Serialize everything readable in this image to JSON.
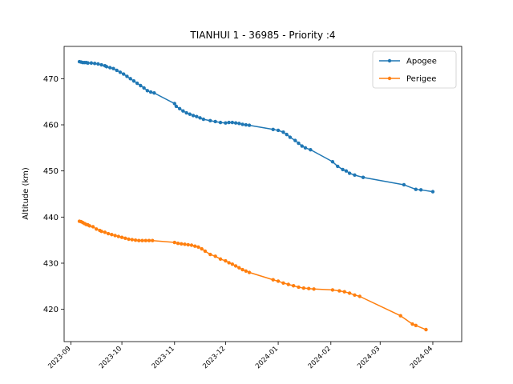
{
  "chart_data": {
    "type": "line",
    "title": "TIANHUI 1 - 36985 - Priority :4",
    "xlabel": "",
    "ylabel": "Altitude (km)",
    "x_axis_type": "date",
    "xlim": [
      "2023-08-28",
      "2024-04-18"
    ],
    "ylim": [
      413,
      477
    ],
    "xticks": [
      "2023-09-01",
      "2023-10-01",
      "2023-11-01",
      "2023-12-01",
      "2024-01-01",
      "2024-02-01",
      "2024-03-01",
      "2024-04-01"
    ],
    "xtick_labels": [
      "2023-09",
      "2023-10",
      "2023-11",
      "2023-12",
      "2024-01",
      "2024-02",
      "2024-03",
      "2024-04"
    ],
    "yticks": [
      420,
      430,
      440,
      450,
      460,
      470
    ],
    "ytick_labels": [
      "420",
      "430",
      "440",
      "450",
      "460",
      "470"
    ],
    "grid": false,
    "legend_position": "top-right",
    "series": [
      {
        "name": "Apogee",
        "color": "#1f77b4",
        "marker": "circle",
        "points": [
          [
            "2023-09-06",
            473.7
          ],
          [
            "2023-09-07",
            473.6
          ],
          [
            "2023-09-08",
            473.5
          ],
          [
            "2023-09-09",
            473.5
          ],
          [
            "2023-09-10",
            473.5
          ],
          [
            "2023-09-11",
            473.4
          ],
          [
            "2023-09-13",
            473.4
          ],
          [
            "2023-09-15",
            473.3
          ],
          [
            "2023-09-17",
            473.2
          ],
          [
            "2023-09-19",
            473.0
          ],
          [
            "2023-09-21",
            472.8
          ],
          [
            "2023-09-22",
            472.6
          ],
          [
            "2023-09-24",
            472.4
          ],
          [
            "2023-09-26",
            472.2
          ],
          [
            "2023-09-28",
            471.8
          ],
          [
            "2023-09-30",
            471.4
          ],
          [
            "2023-10-02",
            471.0
          ],
          [
            "2023-10-04",
            470.5
          ],
          [
            "2023-10-06",
            470.0
          ],
          [
            "2023-10-08",
            469.5
          ],
          [
            "2023-10-10",
            469.0
          ],
          [
            "2023-10-12",
            468.5
          ],
          [
            "2023-10-14",
            468.0
          ],
          [
            "2023-10-16",
            467.4
          ],
          [
            "2023-10-18",
            467.1
          ],
          [
            "2023-10-20",
            466.9
          ],
          [
            "2023-11-01",
            464.6
          ],
          [
            "2023-11-02",
            464.0
          ],
          [
            "2023-11-04",
            463.5
          ],
          [
            "2023-11-06",
            463.0
          ],
          [
            "2023-11-08",
            462.6
          ],
          [
            "2023-11-10",
            462.3
          ],
          [
            "2023-11-12",
            462.0
          ],
          [
            "2023-11-14",
            461.8
          ],
          [
            "2023-11-16",
            461.5
          ],
          [
            "2023-11-18",
            461.2
          ],
          [
            "2023-11-22",
            460.9
          ],
          [
            "2023-11-25",
            460.7
          ],
          [
            "2023-11-28",
            460.5
          ],
          [
            "2023-12-01",
            460.4
          ],
          [
            "2023-12-03",
            460.5
          ],
          [
            "2023-12-05",
            460.5
          ],
          [
            "2023-12-07",
            460.4
          ],
          [
            "2023-12-09",
            460.3
          ],
          [
            "2023-12-11",
            460.1
          ],
          [
            "2023-12-13",
            460.0
          ],
          [
            "2023-12-15",
            459.9
          ],
          [
            "2023-12-29",
            459.0
          ],
          [
            "2024-01-01",
            458.8
          ],
          [
            "2024-01-04",
            458.4
          ],
          [
            "2024-01-06",
            457.9
          ],
          [
            "2024-01-08",
            457.3
          ],
          [
            "2024-01-11",
            456.6
          ],
          [
            "2024-01-13",
            456.0
          ],
          [
            "2024-01-15",
            455.4
          ],
          [
            "2024-01-17",
            455.0
          ],
          [
            "2024-01-20",
            454.6
          ],
          [
            "2024-02-02",
            452.0
          ],
          [
            "2024-02-05",
            451.0
          ],
          [
            "2024-02-08",
            450.3
          ],
          [
            "2024-02-10",
            450.0
          ],
          [
            "2024-02-12",
            449.5
          ],
          [
            "2024-02-15",
            449.1
          ],
          [
            "2024-02-20",
            448.6
          ],
          [
            "2024-03-15",
            447.0
          ],
          [
            "2024-03-22",
            446.0
          ],
          [
            "2024-03-25",
            445.9
          ],
          [
            "2024-04-01",
            445.5
          ]
        ]
      },
      {
        "name": "Perigee",
        "color": "#ff7f0e",
        "marker": "circle",
        "points": [
          [
            "2023-09-06",
            439.1
          ],
          [
            "2023-09-07",
            439.0
          ],
          [
            "2023-09-08",
            438.8
          ],
          [
            "2023-09-09",
            438.6
          ],
          [
            "2023-09-10",
            438.4
          ],
          [
            "2023-09-11",
            438.3
          ],
          [
            "2023-09-12",
            438.1
          ],
          [
            "2023-09-14",
            437.9
          ],
          [
            "2023-09-16",
            437.4
          ],
          [
            "2023-09-18",
            437.1
          ],
          [
            "2023-09-19",
            436.9
          ],
          [
            "2023-09-21",
            436.7
          ],
          [
            "2023-09-23",
            436.4
          ],
          [
            "2023-09-25",
            436.2
          ],
          [
            "2023-09-27",
            436.0
          ],
          [
            "2023-09-29",
            435.8
          ],
          [
            "2023-10-01",
            435.6
          ],
          [
            "2023-10-03",
            435.4
          ],
          [
            "2023-10-05",
            435.2
          ],
          [
            "2023-10-07",
            435.1
          ],
          [
            "2023-10-09",
            435.0
          ],
          [
            "2023-10-11",
            434.9
          ],
          [
            "2023-10-13",
            434.9
          ],
          [
            "2023-10-15",
            434.9
          ],
          [
            "2023-10-17",
            434.9
          ],
          [
            "2023-10-19",
            434.9
          ],
          [
            "2023-11-01",
            434.5
          ],
          [
            "2023-11-03",
            434.3
          ],
          [
            "2023-11-05",
            434.2
          ],
          [
            "2023-11-07",
            434.1
          ],
          [
            "2023-11-09",
            434.0
          ],
          [
            "2023-11-11",
            433.9
          ],
          [
            "2023-11-13",
            433.7
          ],
          [
            "2023-11-15",
            433.5
          ],
          [
            "2023-11-17",
            433.1
          ],
          [
            "2023-11-19",
            432.6
          ],
          [
            "2023-11-22",
            431.9
          ],
          [
            "2023-11-25",
            431.5
          ],
          [
            "2023-11-28",
            430.9
          ],
          [
            "2023-12-01",
            430.5
          ],
          [
            "2023-12-03",
            430.1
          ],
          [
            "2023-12-05",
            429.8
          ],
          [
            "2023-12-07",
            429.4
          ],
          [
            "2023-12-09",
            429.0
          ],
          [
            "2023-12-11",
            428.6
          ],
          [
            "2023-12-13",
            428.3
          ],
          [
            "2023-12-15",
            428.0
          ],
          [
            "2023-12-29",
            426.4
          ],
          [
            "2024-01-01",
            426.1
          ],
          [
            "2024-01-04",
            425.7
          ],
          [
            "2024-01-07",
            425.4
          ],
          [
            "2024-01-10",
            425.1
          ],
          [
            "2024-01-13",
            424.8
          ],
          [
            "2024-01-16",
            424.6
          ],
          [
            "2024-01-19",
            424.5
          ],
          [
            "2024-01-22",
            424.4
          ],
          [
            "2024-02-02",
            424.2
          ],
          [
            "2024-02-06",
            424.0
          ],
          [
            "2024-02-09",
            423.8
          ],
          [
            "2024-02-12",
            423.5
          ],
          [
            "2024-02-15",
            423.1
          ],
          [
            "2024-02-18",
            422.8
          ],
          [
            "2024-03-13",
            418.6
          ],
          [
            "2024-03-20",
            416.8
          ],
          [
            "2024-03-22",
            416.5
          ],
          [
            "2024-03-28",
            415.6
          ]
        ]
      }
    ]
  }
}
